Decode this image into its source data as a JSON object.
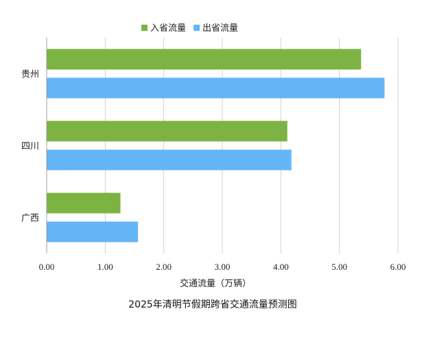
{
  "chart_data": {
    "type": "bar",
    "orientation": "horizontal",
    "title": "2025年清明节假期跨省交通流量预测图",
    "xlabel": "交通流量（万辆）",
    "ylabel": "",
    "xlim": [
      0,
      6
    ],
    "xticks": [
      "0.00",
      "1.00",
      "2.00",
      "3.00",
      "4.00",
      "5.00",
      "6.00"
    ],
    "grid": "vertical",
    "legend_position": "top",
    "categories": [
      "贵州",
      "四川",
      "广西"
    ],
    "series": [
      {
        "name": "入省流量",
        "color": "#7cb342",
        "values": [
          5.37,
          4.11,
          1.26
        ]
      },
      {
        "name": "出省流量",
        "color": "#64b5f6",
        "values": [
          5.77,
          4.18,
          1.56
        ]
      }
    ]
  }
}
